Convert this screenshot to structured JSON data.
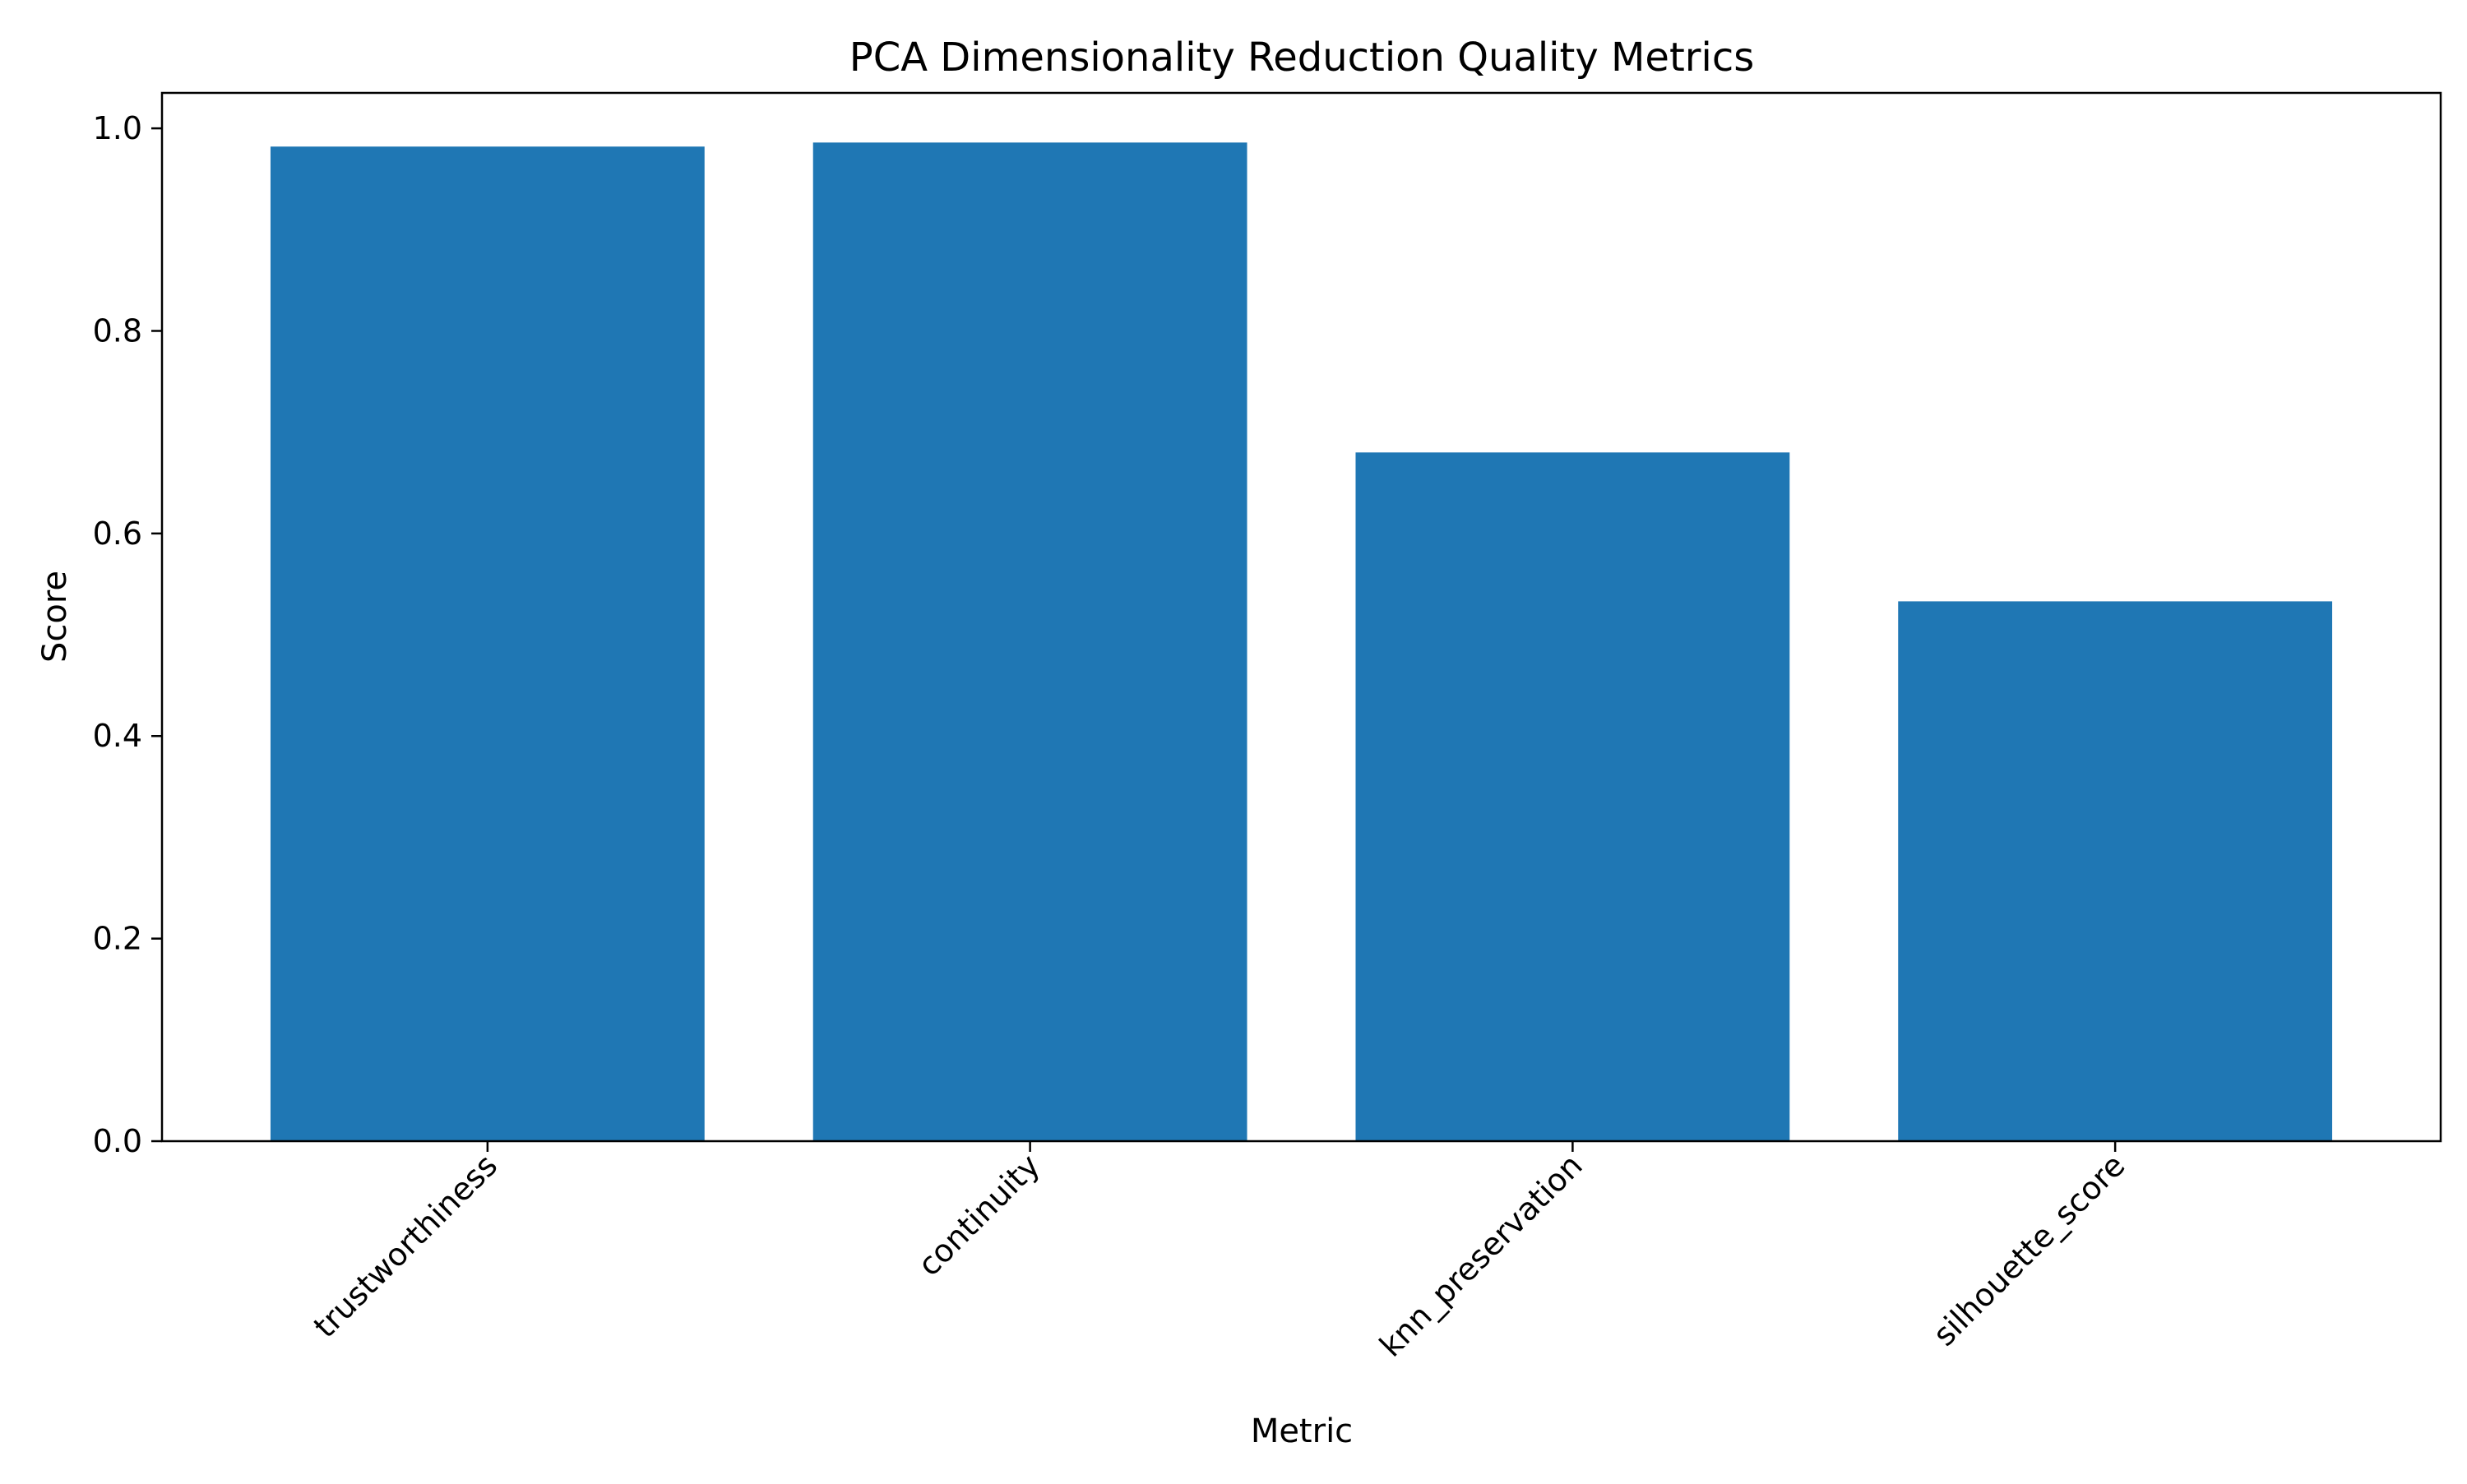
{
  "chart_data": {
    "type": "bar",
    "title": "PCA Dimensionality Reduction Quality Metrics",
    "xlabel": "Metric",
    "ylabel": "Score",
    "categories": [
      "trustworthiness",
      "continuity",
      "knn_preservation",
      "silhouette_score"
    ],
    "values": [
      0.982,
      0.986,
      0.68,
      0.533
    ],
    "ylim": [
      0,
      1.035
    ],
    "yticks": [
      0.0,
      0.2,
      0.4,
      0.6,
      0.8,
      1.0
    ],
    "ytick_labels": [
      "0.0",
      "0.2",
      "0.4",
      "0.6",
      "0.8",
      "1.0"
    ],
    "xtick_rotation_deg": 45,
    "grid": false,
    "legend": "none",
    "bar_color": "#1f77b4"
  }
}
